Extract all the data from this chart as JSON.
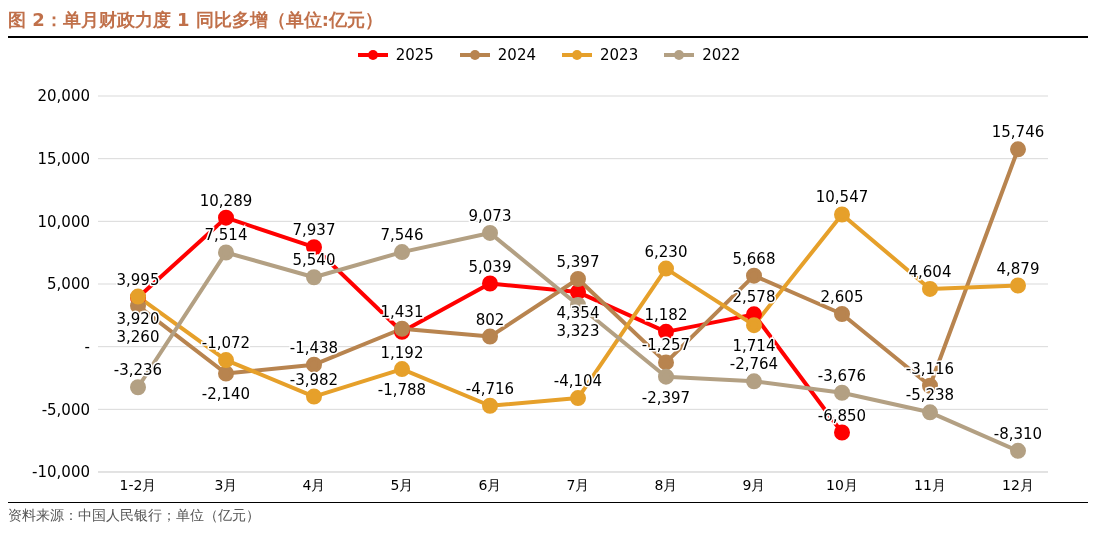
{
  "chart_data": {
    "type": "line",
    "title": "图 2：单月财政力度 1 同比多增（单位:亿元）",
    "categories": [
      "1-2月",
      "3月",
      "4月",
      "5月",
      "6月",
      "7月",
      "8月",
      "9月",
      "10月",
      "11月",
      "12月"
    ],
    "series": [
      {
        "name": "2025",
        "color": "#ff0000",
        "values": [
          3920,
          10289,
          7937,
          1192,
          5039,
          4354,
          1182,
          2578,
          -6850,
          null,
          null
        ],
        "value_labels": [
          "3,920",
          "10,289",
          "7,937",
          "1,192",
          "5,039",
          "4,354",
          "1,182",
          "2,578",
          "-6,850",
          null,
          null
        ]
      },
      {
        "name": "2024",
        "color": "#b8844f",
        "values": [
          3260,
          -2140,
          -1438,
          1431,
          802,
          5397,
          -1257,
          5668,
          2605,
          -3116,
          15746
        ],
        "value_labels": [
          "3,260",
          "-2,140",
          "-1,438",
          "1,431",
          "802",
          "5,397",
          "-1,257",
          "5,668",
          "2,605",
          "-3,116",
          "15,746"
        ]
      },
      {
        "name": "2023",
        "color": "#e6a02a",
        "values": [
          3995,
          -1072,
          -3982,
          -1788,
          -4716,
          -4104,
          6230,
          1714,
          10547,
          4604,
          4879
        ],
        "value_labels": [
          "3,995",
          "-1,072",
          "-3,982",
          "-1,788",
          "-4,716",
          "-4,104",
          "6,230",
          "1,714",
          "10,547",
          "4,604",
          "4,879"
        ]
      },
      {
        "name": "2022",
        "color": "#b3a083",
        "values": [
          -3236,
          7514,
          5540,
          7546,
          9073,
          3323,
          -2397,
          -2764,
          -3676,
          -5238,
          -8310
        ],
        "value_labels": [
          "-3,236",
          "7,514",
          "5,540",
          "7,546",
          "9,073",
          "3,323",
          "-2,397",
          "-2,764",
          "-3,676",
          "-5,238",
          "-8,310"
        ]
      }
    ],
    "ylim": [
      -10000,
      20000
    ],
    "yticks": [
      {
        "value": -10000,
        "label": "-10,000"
      },
      {
        "value": -5000,
        "label": "-5,000"
      },
      {
        "value": 0,
        "label": "-"
      },
      {
        "value": 5000,
        "label": "5,000"
      },
      {
        "value": 10000,
        "label": "10,000"
      },
      {
        "value": 15000,
        "label": "15,000"
      },
      {
        "value": 20000,
        "label": "20,000"
      }
    ],
    "grid": "y",
    "legend": "top",
    "marker": "circle",
    "line_style": "solid",
    "annotations": [
      "资料来源：中国人民银行；单位（亿元）"
    ]
  }
}
